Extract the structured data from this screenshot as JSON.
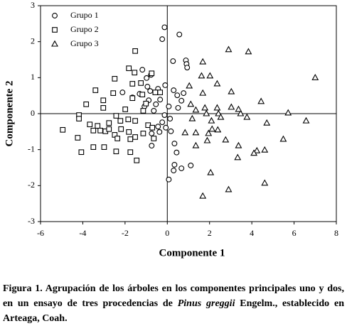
{
  "chart_data": {
    "type": "scatter",
    "xlabel": "Componente 1",
    "ylabel": "Componente 2",
    "xlim": [
      -6,
      8
    ],
    "xticks": [
      -6,
      -4,
      -2,
      0,
      2,
      4,
      6,
      8
    ],
    "ylim": [
      -3,
      3
    ],
    "yticks": [
      -3,
      -2,
      -1,
      0,
      1,
      2,
      3
    ],
    "zero_lines": true,
    "legend": "upper left",
    "series": [
      {
        "name": "Grupo 1",
        "marker": "circle",
        "color": "#000000",
        "x": [
          -0.13,
          0.57,
          -0.24,
          0.88,
          0.91,
          0.94,
          0.27,
          -1.18,
          -0.77,
          -0.98,
          -0.1,
          0.3,
          0.77,
          0.47,
          -0.44,
          -0.81,
          -1.31,
          -2.12,
          -0.34,
          -0.88,
          -1.08,
          -0.64,
          0.07,
          0.51,
          0.67,
          -0.13,
          0.13,
          -0.24,
          -0.07,
          0.17,
          -0.44,
          -0.74,
          -0.74,
          0.34,
          0.44,
          0.34,
          0.67,
          0.3,
          1.11,
          0.07,
          -0.37,
          -0.54,
          -1.65,
          -0.94
        ],
        "values": [
          2.4,
          2.2,
          2.07,
          1.48,
          1.38,
          1.28,
          1.46,
          1.22,
          1.08,
          0.99,
          0.79,
          0.65,
          0.57,
          0.51,
          0.69,
          0.63,
          0.55,
          0.59,
          0.39,
          0.37,
          0.2,
          0.08,
          0.2,
          0.16,
          0.36,
          -0.04,
          -0.14,
          -0.24,
          -0.39,
          -0.49,
          -0.36,
          -0.55,
          -0.89,
          -0.83,
          -1.08,
          -1.42,
          -1.52,
          -1.58,
          -1.44,
          -1.83,
          -0.51,
          0.26,
          0.45,
          0.75
        ]
      },
      {
        "name": "Grupo 2",
        "marker": "square",
        "color": "#000000",
        "x": [
          -1.52,
          -1.82,
          -1.55,
          -0.74,
          -2.49,
          -1.65,
          -1.25,
          -2.56,
          -3.4,
          -1.65,
          -3.03,
          -1.18,
          -0.57,
          -1.01,
          -3.03,
          -3.84,
          -4.18,
          -4.18,
          -4.95,
          -3.67,
          -3.3,
          -2.76,
          -2.42,
          -2.22,
          -1.85,
          -1.52,
          -3.5,
          -3.17,
          -2.93,
          -2.76,
          -2.49,
          -2.19,
          -1.82,
          -1.14,
          -0.91,
          -4.24,
          -4.07,
          -3.5,
          -2.99,
          -2.36,
          -1.75,
          -2.42,
          -1.75,
          -1.45,
          -1.52,
          -0.64,
          -0.71,
          -0.34,
          -1.14,
          -1.99
        ],
        "values": [
          1.74,
          1.26,
          1.14,
          1.12,
          0.97,
          0.83,
          0.85,
          0.57,
          0.65,
          0.43,
          0.37,
          0.53,
          0.59,
          0.28,
          0.16,
          0.26,
          -0.04,
          -0.14,
          -0.45,
          -0.3,
          -0.34,
          -0.26,
          -0.06,
          -0.2,
          -0.16,
          -0.2,
          -0.47,
          -0.47,
          -0.49,
          -0.43,
          -0.59,
          -0.43,
          -0.51,
          -0.55,
          -0.32,
          -0.67,
          -1.07,
          -0.93,
          -0.93,
          -0.69,
          -0.71,
          -1.05,
          -1.07,
          -1.3,
          -0.65,
          -0.69,
          -0.39,
          0.59,
          0.08,
          0.12
        ]
      },
      {
        "name": "Grupo 3",
        "marker": "triangle",
        "color": "#000000",
        "x": [
          7.0,
          3.84,
          2.9,
          1.68,
          1.04,
          1.62,
          2.02,
          1.68,
          2.36,
          3.03,
          4.44,
          1.11,
          1.78,
          2.36,
          3.03,
          2.42,
          1.85,
          1.35,
          1.18,
          2.09,
          2.53,
          3.47,
          3.77,
          4.71,
          5.72,
          6.57,
          1.35,
          1.95,
          2.39,
          2.12,
          2.76,
          1.89,
          0.84,
          1.35,
          3.37,
          4.24,
          4.1,
          4.61,
          5.49,
          3.33,
          2.05,
          4.61,
          2.9,
          1.68,
          3.37
        ],
        "values": [
          1.0,
          1.72,
          1.78,
          1.44,
          0.77,
          1.05,
          1.05,
          0.57,
          0.83,
          0.61,
          0.34,
          0.26,
          0.16,
          0.16,
          0.18,
          0.0,
          0.0,
          0.1,
          -0.14,
          -0.2,
          -0.1,
          0.0,
          -0.1,
          -0.26,
          0.02,
          -0.2,
          -0.53,
          -0.55,
          -0.45,
          -0.43,
          -0.73,
          -0.75,
          -0.53,
          -0.89,
          -0.89,
          -1.03,
          -1.1,
          -1.01,
          -0.71,
          -1.22,
          -1.64,
          -1.93,
          -2.11,
          -2.29,
          0.12
        ]
      }
    ]
  },
  "caption": {
    "text_1": "Figura 1. Agrupación de los árboles en los componentes principales uno y dos, en un ensayo de tres procedencias de ",
    "species": "Pinus greggii",
    "text_2": " Engelm., establecido en Arteaga, Coah."
  }
}
